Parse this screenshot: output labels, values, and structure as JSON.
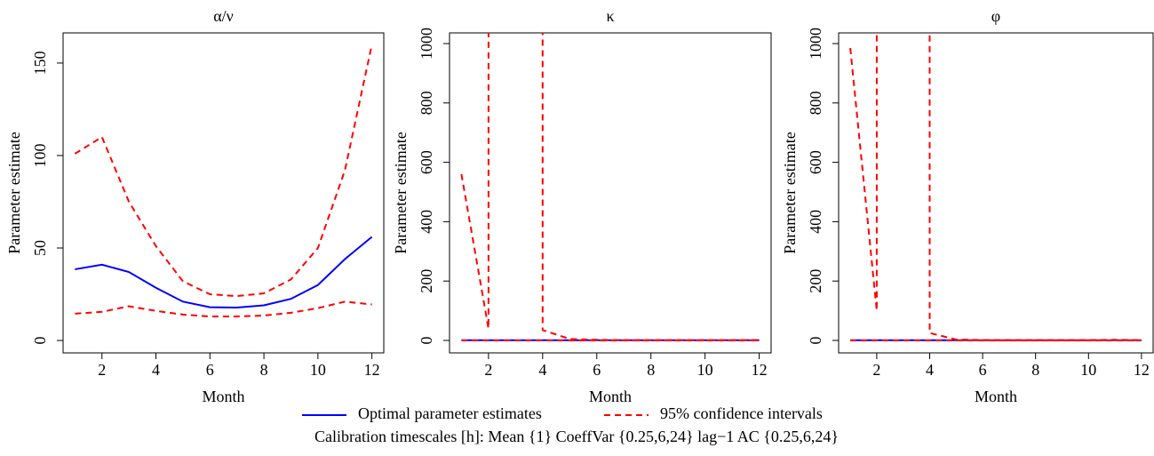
{
  "chart_data": [
    {
      "type": "line",
      "title": "α/ν",
      "xlabel": "Month",
      "ylabel": "Parameter estimate",
      "x": [
        1,
        2,
        3,
        4,
        5,
        6,
        7,
        8,
        9,
        10,
        11,
        12
      ],
      "xlim": [
        0.56,
        12.44
      ],
      "xticks": [
        2,
        4,
        6,
        8,
        10,
        12
      ],
      "ylim": [
        -6.7,
        166.3
      ],
      "yticks": [
        0,
        50,
        100,
        150
      ],
      "series": [
        {
          "name": "Optimal parameter estimates",
          "color": "#0000ff",
          "values": [
            38.5,
            41,
            37,
            28.5,
            21,
            18,
            17.8,
            19,
            22.5,
            30,
            44,
            56
          ]
        },
        {
          "name": "95% confidence intervals",
          "color": "#ff0000",
          "dashed": true,
          "lower": [
            14.5,
            15.5,
            18.5,
            16,
            14,
            13,
            13,
            13.5,
            15,
            17.5,
            21,
            19.5
          ],
          "upper": [
            101,
            110,
            75,
            51,
            32,
            25,
            24,
            25.5,
            33,
            50,
            92,
            160
          ]
        }
      ]
    },
    {
      "type": "line",
      "title": "κ",
      "xlabel": "Month",
      "ylabel": "Parameter estimate",
      "x": [
        1,
        2,
        3,
        4,
        5,
        6,
        7,
        8,
        9,
        10,
        11,
        12
      ],
      "xlim": [
        0.56,
        12.44
      ],
      "xticks": [
        2,
        4,
        6,
        8,
        10,
        12
      ],
      "ylim": [
        -42,
        1036
      ],
      "yticks": [
        0,
        200,
        400,
        600,
        800,
        1000
      ],
      "series": [
        {
          "name": "Optimal parameter estimates",
          "color": "#0000ff",
          "values": [
            0.5,
            0.5,
            0.5,
            0.5,
            0.5,
            0.5,
            0.5,
            0.5,
            0.5,
            0.5,
            0.5,
            0.5
          ]
        },
        {
          "name": "95% confidence intervals",
          "color": "#ff0000",
          "dashed": true,
          "lower": [
            0,
            0,
            0,
            0,
            0,
            0,
            0,
            0,
            0,
            0,
            0,
            0
          ],
          "upper": [
            560,
            40,
            1000000,
            35,
            5,
            2,
            1,
            1,
            1,
            1,
            1,
            1
          ]
        }
      ]
    },
    {
      "type": "line",
      "title": "φ",
      "xlabel": "Month",
      "ylabel": "Parameter estimate",
      "x": [
        1,
        2,
        3,
        4,
        5,
        6,
        7,
        8,
        9,
        10,
        11,
        12
      ],
      "xlim": [
        0.56,
        12.44
      ],
      "xticks": [
        2,
        4,
        6,
        8,
        10,
        12
      ],
      "ylim": [
        -42,
        1036
      ],
      "yticks": [
        0,
        200,
        400,
        600,
        800,
        1000
      ],
      "series": [
        {
          "name": "Optimal parameter estimates",
          "color": "#0000ff",
          "values": [
            0.5,
            0.5,
            0.5,
            0.5,
            0.5,
            0.5,
            0.5,
            0.5,
            0.5,
            0.5,
            0.5,
            0.5
          ]
        },
        {
          "name": "95% confidence intervals",
          "color": "#ff0000",
          "dashed": true,
          "lower": [
            0,
            0,
            0,
            0,
            0,
            0,
            0,
            0,
            0,
            0,
            0,
            0
          ],
          "upper": [
            985,
            100,
            1000000,
            25,
            3,
            1,
            1,
            1,
            1,
            1,
            2,
            1
          ]
        }
      ]
    }
  ],
  "caption": "Calibration timescales [h]:  Mean {1} CoeffVar {0.25,6,24} lag−1 AC {0.25,6,24}"
}
